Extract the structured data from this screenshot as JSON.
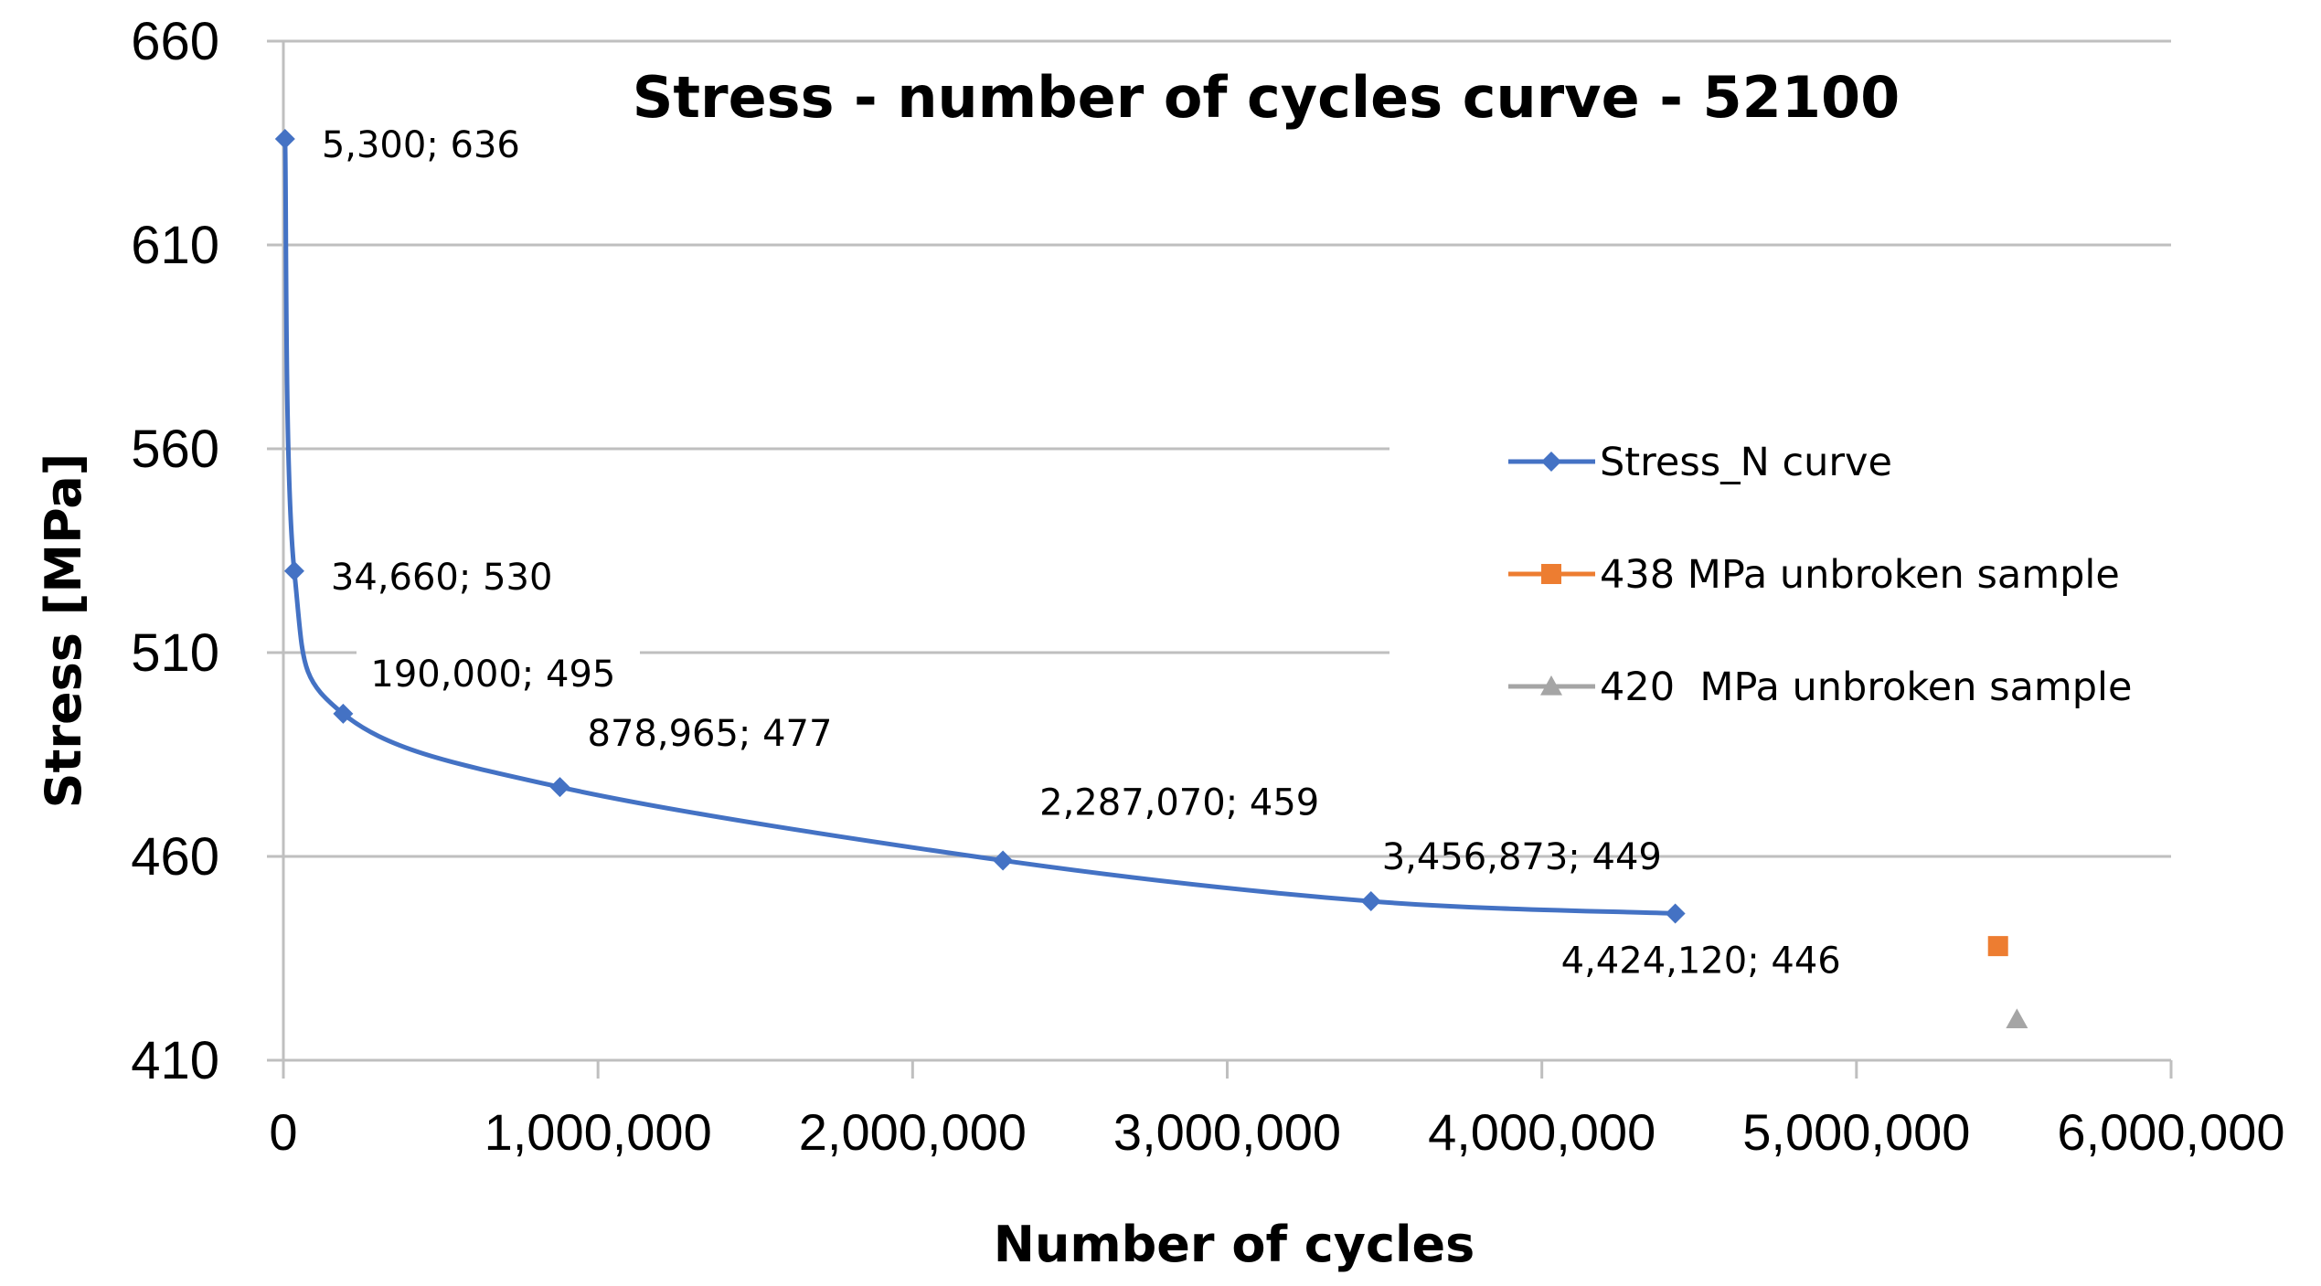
{
  "chart_data": {
    "type": "scatter",
    "title": "Stress - number of cycles curve - 52100",
    "xlabel": "Number of cycles",
    "ylabel": "Stress [MPa]",
    "xlim": [
      0,
      6000000
    ],
    "ylim": [
      410,
      660
    ],
    "x_ticks": [
      0,
      1000000,
      2000000,
      3000000,
      4000000,
      5000000,
      6000000
    ],
    "x_tick_labels": [
      "0",
      "1,000,000",
      "2,000,000",
      "3,000,000",
      "4,000,000",
      "5,000,000",
      "6,000,000"
    ],
    "y_ticks": [
      410,
      460,
      510,
      560,
      610,
      660
    ],
    "y_tick_labels": [
      "410",
      "460",
      "510",
      "560",
      "610",
      "660"
    ],
    "grid": "horizontal",
    "legend_position": "right",
    "series": [
      {
        "name": "Stress_N curve",
        "color": "#4472C4",
        "marker": "diamond",
        "line": "smooth",
        "x": [
          5300,
          34660,
          190000,
          878965,
          2287070,
          3456873,
          4424120
        ],
        "y": [
          636,
          530,
          495,
          477,
          459,
          449,
          446
        ],
        "labels": [
          "5,300; 636",
          "34,660; 530",
          "190,000; 495",
          "878,965; 477",
          "2,287,070; 459",
          "3,456,873; 449",
          "4,424,120; 446"
        ]
      },
      {
        "name": "438 MPa unbroken sample",
        "color": "#ED7D31",
        "marker": "square",
        "line": "none",
        "x": [
          5450000
        ],
        "y": [
          438
        ]
      },
      {
        "name": "420  MPa unbroken sample",
        "color": "#A5A5A5",
        "marker": "triangle",
        "line": "none",
        "x": [
          5510000
        ],
        "y": [
          420
        ]
      }
    ]
  }
}
